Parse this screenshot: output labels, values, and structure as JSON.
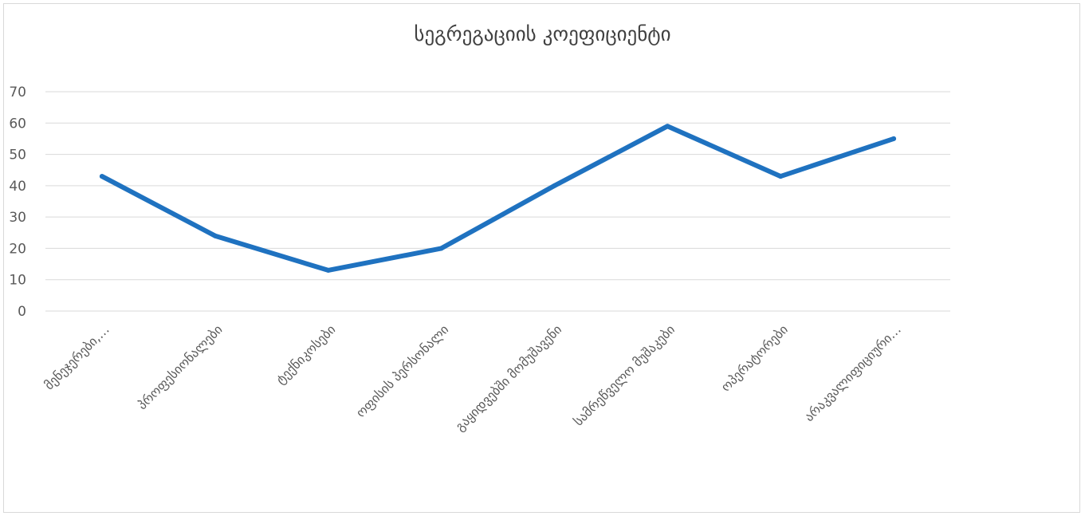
{
  "chart_data": {
    "type": "line",
    "title": "სეგრეგაციის კოეფიციენტი",
    "xlabel": "",
    "ylabel": "",
    "categories": [
      "მენეჯერები,…",
      "პროფესიონალები",
      "ტექნიკოსები",
      "ოფისის პერსონალი",
      "გაყიდვებში მომუშავენი",
      "სამრეწველო მუშაკები",
      "ოპერატორები",
      "არაკვალიფიციური…"
    ],
    "series": [
      {
        "values": [
          43,
          24,
          13,
          20,
          40,
          59,
          43,
          55
        ]
      }
    ],
    "yticks": [
      "0",
      "10",
      "20",
      "30",
      "40",
      "50",
      "60",
      "70"
    ],
    "ylim": [
      0,
      70
    ],
    "grid": true,
    "legend": "none",
    "line_color": "#1f72c0",
    "grid_color": "#d9d9d9",
    "text_color": "#595959"
  }
}
